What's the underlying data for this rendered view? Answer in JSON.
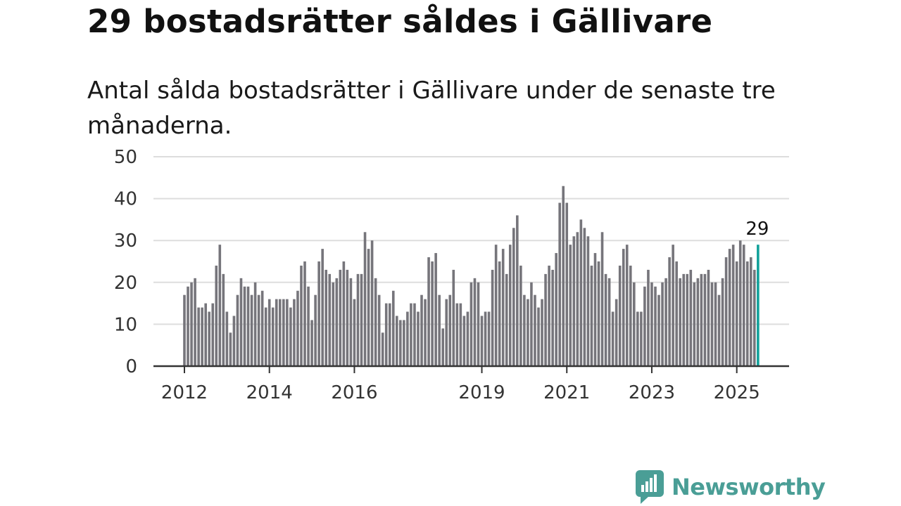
{
  "title": "29 bostadsrätter såldes i Gällivare",
  "subtitle": "Antal sålda bostadsrätter i Gällivare under de senaste tre månaderna.",
  "brand": {
    "name": "Newsworthy",
    "color": "#4a9e96"
  },
  "colors": {
    "bar": "#76757b",
    "highlight": "#12a19a",
    "grid": "#dddddd",
    "axis": "#333333"
  },
  "chart_data": {
    "type": "bar",
    "ylim": [
      0,
      50
    ],
    "yticks": [
      0,
      10,
      20,
      30,
      40,
      50
    ],
    "xticks": [
      {
        "label": "2012",
        "index": 0
      },
      {
        "label": "2014",
        "index": 24
      },
      {
        "label": "2016",
        "index": 48
      },
      {
        "label": "2019",
        "index": 84
      },
      {
        "label": "2021",
        "index": 108
      },
      {
        "label": "2023",
        "index": 132
      },
      {
        "label": "2025",
        "index": 156
      }
    ],
    "start": "2012-01",
    "frequency": "monthly",
    "highlight_label": "29",
    "values": [
      17,
      19,
      20,
      21,
      14,
      14,
      15,
      13,
      15,
      24,
      29,
      22,
      13,
      8,
      12,
      17,
      21,
      19,
      19,
      17,
      20,
      17,
      18,
      14,
      16,
      14,
      16,
      16,
      16,
      16,
      14,
      16,
      18,
      24,
      25,
      19,
      11,
      17,
      25,
      28,
      23,
      22,
      20,
      21,
      23,
      25,
      23,
      21,
      16,
      22,
      22,
      32,
      28,
      30,
      21,
      17,
      8,
      15,
      15,
      18,
      12,
      11,
      11,
      13,
      15,
      15,
      13,
      17,
      16,
      26,
      25,
      27,
      17,
      9,
      16,
      17,
      23,
      15,
      15,
      12,
      13,
      20,
      21,
      20,
      12,
      13,
      13,
      23,
      29,
      25,
      28,
      22,
      29,
      33,
      36,
      24,
      17,
      16,
      20,
      17,
      14,
      16,
      22,
      24,
      23,
      27,
      39,
      43,
      39,
      29,
      31,
      32,
      35,
      33,
      31,
      24,
      27,
      25,
      32,
      22,
      21,
      13,
      16,
      24,
      28,
      29,
      24,
      20,
      13,
      13,
      19,
      23,
      20,
      19,
      17,
      20,
      21,
      26,
      29,
      25,
      21,
      22,
      22,
      23,
      20,
      21,
      22,
      22,
      23,
      20,
      20,
      17,
      21,
      26,
      28,
      29,
      25,
      30,
      29,
      25,
      26,
      23,
      29
    ]
  }
}
